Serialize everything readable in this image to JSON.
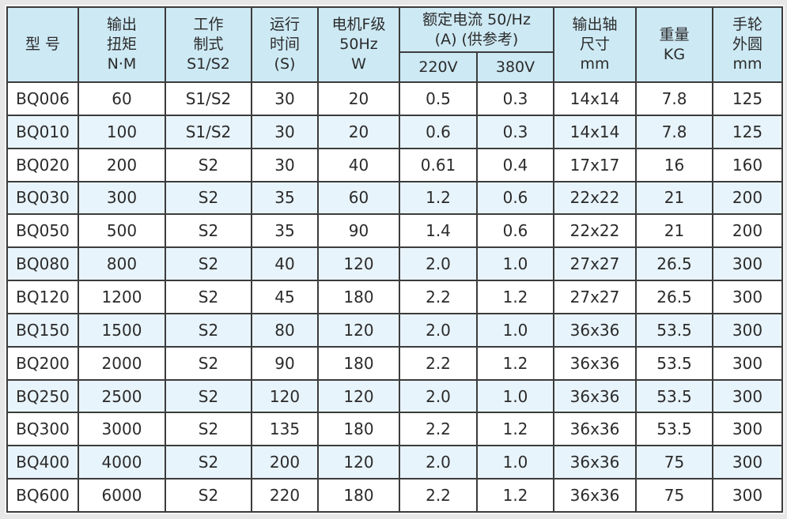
{
  "table": {
    "header": {
      "model": "型 号",
      "torque_lines": [
        "输出",
        "扭矩",
        "N·M"
      ],
      "duty_lines": [
        "工作",
        "制式",
        "S1/S2"
      ],
      "time_lines": [
        "运行",
        "时间",
        "(S)"
      ],
      "motor_lines": [
        "电机F级",
        "50Hz",
        "W"
      ],
      "current_lines": [
        "额定电流 50/Hz",
        "(A) (供参考)"
      ],
      "current_sub": [
        "220V",
        "380V"
      ],
      "shaft_lines": [
        "输出轴",
        "尺寸",
        "mm"
      ],
      "weight_lines": [
        "重量",
        "KG"
      ],
      "handwheel_lines": [
        "手轮",
        "外圆",
        "mm"
      ]
    },
    "rows": [
      {
        "cells": [
          "BQ006",
          "60",
          "S1/S2",
          "30",
          "20",
          "0.5",
          "0.3",
          "14x14",
          "7.8",
          "125"
        ]
      },
      {
        "cells": [
          "BQ010",
          "100",
          "S1/S2",
          "30",
          "20",
          "0.6",
          "0.3",
          "14x14",
          "7.8",
          "125"
        ]
      },
      {
        "cells": [
          "BQ020",
          "200",
          "S2",
          "30",
          "40",
          "0.61",
          "0.4",
          "17x17",
          "16",
          "160"
        ]
      },
      {
        "cells": [
          "BQ030",
          "300",
          "S2",
          "35",
          "60",
          "1.2",
          "0.6",
          "22x22",
          "21",
          "200"
        ]
      },
      {
        "cells": [
          "BQ050",
          "500",
          "S2",
          "35",
          "90",
          "1.4",
          "0.6",
          "22x22",
          "21",
          "200"
        ]
      },
      {
        "cells": [
          "BQ080",
          "800",
          "S2",
          "40",
          "120",
          "2.0",
          "1.0",
          "27x27",
          "26.5",
          "300"
        ]
      },
      {
        "cells": [
          "BQ120",
          "1200",
          "S2",
          "45",
          "180",
          "2.2",
          "1.2",
          "27x27",
          "26.5",
          "300"
        ]
      },
      {
        "cells": [
          "BQ150",
          "1500",
          "S2",
          "80",
          "120",
          "2.0",
          "1.0",
          "36x36",
          "53.5",
          "300"
        ]
      },
      {
        "cells": [
          "BQ200",
          "2000",
          "S2",
          "90",
          "180",
          "2.2",
          "1.2",
          "36x36",
          "53.5",
          "300"
        ]
      },
      {
        "cells": [
          "BQ250",
          "2500",
          "S2",
          "120",
          "120",
          "2.0",
          "1.0",
          "36x36",
          "53.5",
          "300"
        ]
      },
      {
        "cells": [
          "BQ300",
          "3000",
          "S2",
          "135",
          "180",
          "2.2",
          "1.2",
          "36x36",
          "53.5",
          "300"
        ]
      },
      {
        "cells": [
          "BQ400",
          "4000",
          "S2",
          "200",
          "120",
          "2.0",
          "1.0",
          "36x36",
          "75",
          "300"
        ]
      },
      {
        "cells": [
          "BQ600",
          "6000",
          "S2",
          "220",
          "180",
          "2.2",
          "1.2",
          "36x36",
          "75",
          "300"
        ]
      }
    ],
    "colors": {
      "header_bg": "#cde9f4",
      "stripe_bg": "#e8f4fb",
      "border": "#3c3c3c",
      "page_bg": "#e7e7e7"
    }
  }
}
